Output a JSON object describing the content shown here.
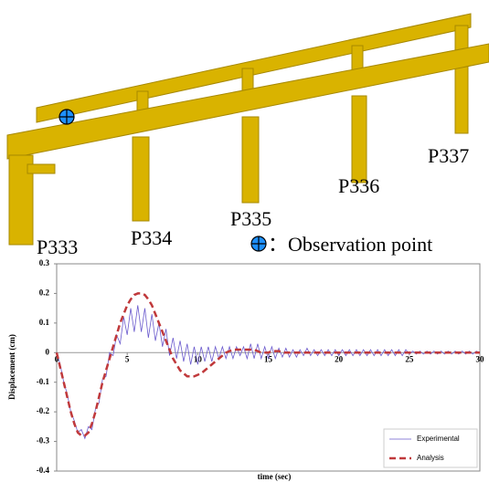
{
  "figure": {
    "piers": [
      "P333",
      "P334",
      "P335",
      "P336",
      "P337"
    ],
    "legend": "：Observation point"
  },
  "chart_data": {
    "type": "line",
    "xlabel": "time (sec)",
    "ylabel": "Displacement (cm)",
    "xlim": [
      0,
      30
    ],
    "xticks": [
      0,
      5,
      10,
      15,
      20,
      25,
      30
    ],
    "ylim": [
      -0.4,
      0.3
    ],
    "yticks": [
      -0.4,
      -0.3,
      -0.2,
      -0.1,
      0,
      0.1,
      0.2,
      0.3
    ],
    "grid": false,
    "legend": "lower right",
    "x": [
      0,
      0.25,
      0.5,
      0.75,
      1,
      1.25,
      1.5,
      1.75,
      2,
      2.25,
      2.5,
      2.75,
      3,
      3.25,
      3.5,
      3.75,
      4,
      4.25,
      4.5,
      4.75,
      5,
      5.25,
      5.5,
      5.75,
      6,
      6.25,
      6.5,
      6.75,
      7,
      7.25,
      7.5,
      7.75,
      8,
      8.25,
      8.5,
      8.75,
      9,
      9.25,
      9.5,
      9.75,
      10,
      10.25,
      10.5,
      10.75,
      11,
      11.25,
      11.5,
      11.75,
      12,
      12.25,
      12.5,
      12.75,
      13,
      13.25,
      13.5,
      13.75,
      14,
      14.25,
      14.5,
      14.75,
      15,
      15.25,
      15.5,
      15.75,
      16,
      16.25,
      16.5,
      16.75,
      17,
      17.25,
      17.5,
      17.75,
      18,
      18.25,
      18.5,
      18.75,
      19,
      19.25,
      19.5,
      19.75,
      20,
      20.25,
      20.5,
      20.75,
      21,
      21.25,
      21.5,
      21.75,
      22,
      22.25,
      22.5,
      22.75,
      23,
      23.25,
      23.5,
      23.75,
      24,
      24.25,
      24.5,
      24.75,
      25,
      25.25,
      25.5,
      25.75,
      26,
      26.25,
      26.5,
      26.75,
      27,
      27.25,
      27.5,
      27.75,
      28,
      28.25,
      28.5,
      28.75,
      29,
      29.25,
      29.5,
      29.75,
      30
    ],
    "series": [
      {
        "name": "Experimental",
        "color": "#6a5acd",
        "style": "solid",
        "values": [
          0,
          -0.04,
          -0.1,
          -0.14,
          -0.2,
          -0.23,
          -0.27,
          -0.26,
          -0.29,
          -0.25,
          -0.26,
          -0.19,
          -0.17,
          -0.09,
          -0.08,
          0,
          -0.01,
          0.06,
          0.03,
          0.12,
          0.06,
          0.15,
          0.07,
          0.16,
          0.07,
          0.15,
          0.05,
          0.13,
          0.04,
          0.1,
          0.02,
          0.08,
          -0.01,
          0.05,
          -0.02,
          0.04,
          -0.03,
          0.03,
          -0.04,
          0.02,
          -0.04,
          0.02,
          -0.03,
          0.02,
          -0.03,
          0.02,
          -0.02,
          0.02,
          -0.02,
          0.02,
          -0.02,
          0.02,
          -0.01,
          0.02,
          -0.02,
          0.03,
          -0.02,
          0.03,
          -0.02,
          0.02,
          -0.02,
          0.02,
          -0.02,
          0.015,
          -0.015,
          0.015,
          -0.015,
          0.01,
          -0.015,
          0.01,
          -0.01,
          0.015,
          -0.01,
          0.01,
          -0.01,
          0.01,
          -0.01,
          0.01,
          -0.01,
          0.01,
          -0.01,
          0.01,
          -0.01,
          0.01,
          -0.01,
          0.01,
          -0.01,
          0.01,
          -0.01,
          0.01,
          -0.01,
          0.01,
          -0.01,
          0.01,
          -0.01,
          0.01,
          -0.01,
          0.01,
          -0.01,
          0.01,
          -0.005,
          0.005,
          -0.005,
          0.005,
          -0.005,
          0.005,
          -0.005,
          0.005,
          -0.005,
          0.005,
          -0.005,
          0.005,
          -0.005,
          0.005,
          -0.005,
          0.005,
          -0.005,
          0.005,
          -0.005,
          0.005,
          0
        ]
      },
      {
        "name": "Analysis",
        "color": "#c0393b",
        "style": "dashed",
        "values": [
          0,
          -0.05,
          -0.1,
          -0.15,
          -0.2,
          -0.24,
          -0.27,
          -0.28,
          -0.28,
          -0.27,
          -0.24,
          -0.2,
          -0.15,
          -0.1,
          -0.06,
          -0.02,
          0.02,
          0.06,
          0.1,
          0.13,
          0.16,
          0.18,
          0.195,
          0.2,
          0.2,
          0.195,
          0.18,
          0.16,
          0.13,
          0.1,
          0.07,
          0.04,
          0.01,
          -0.02,
          -0.04,
          -0.06,
          -0.07,
          -0.08,
          -0.08,
          -0.08,
          -0.075,
          -0.07,
          -0.06,
          -0.05,
          -0.04,
          -0.03,
          -0.02,
          -0.01,
          0,
          0.005,
          0.01,
          0.01,
          0.01,
          0.01,
          0.01,
          0.01,
          0.01,
          0.005,
          0,
          0,
          0,
          0.005,
          0.005,
          0.005,
          0,
          0,
          0,
          0,
          0,
          0,
          0,
          0,
          0,
          0,
          0,
          0,
          0,
          0,
          0,
          0,
          0,
          0,
          0,
          0,
          0,
          0,
          0,
          0,
          0,
          0,
          0,
          0,
          0,
          0,
          0,
          0,
          0,
          0,
          0,
          0,
          0,
          0,
          0,
          0,
          0,
          0,
          0,
          0,
          0,
          0,
          0,
          0,
          0,
          0,
          0,
          0,
          0,
          0,
          0,
          0,
          0
        ]
      }
    ]
  }
}
